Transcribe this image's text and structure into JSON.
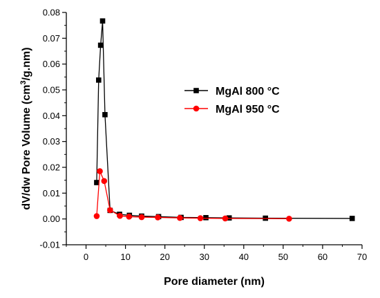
{
  "chart_data": {
    "type": "line",
    "xlabel": "Pore diameter (nm)",
    "ylabel": "dV/dw Pore Volume (cm",
    "ylabel_sup": "3",
    "ylabel_tail": "/g.nm)",
    "xlim": [
      -5,
      70
    ],
    "ylim": [
      -0.01,
      0.08
    ],
    "x_ticks": [
      0,
      10,
      20,
      30,
      40,
      50,
      60,
      70
    ],
    "y_ticks": [
      -0.01,
      0.0,
      0.01,
      0.02,
      0.03,
      0.04,
      0.05,
      0.06,
      0.07,
      0.08
    ],
    "x_tick_labels": [
      "0",
      "10",
      "20",
      "30",
      "40",
      "50",
      "60",
      "70"
    ],
    "y_tick_labels": [
      "-0.01",
      "0.00",
      "0.01",
      "0.02",
      "0.03",
      "0.04",
      "0.05",
      "0.06",
      "0.07",
      "0.08"
    ],
    "grid": false,
    "legend_position": "top-right",
    "series": [
      {
        "name": "MgAl 800 °C",
        "color": "#000000",
        "marker": "square",
        "x": [
          2.7,
          3.2,
          3.7,
          4.2,
          4.8,
          6.1,
          8.5,
          11.0,
          14.1,
          18.4,
          24.1,
          30.4,
          36.3,
          45.5,
          67.5
        ],
        "y": [
          0.0141,
          0.0538,
          0.0673,
          0.0767,
          0.0404,
          0.0033,
          0.0018,
          0.0014,
          0.0011,
          0.0009,
          0.0006,
          0.0005,
          0.0004,
          0.0003,
          0.0002
        ]
      },
      {
        "name": "MgAl 950 °C",
        "color": "#ff0000",
        "marker": "circle",
        "x": [
          2.7,
          3.5,
          4.6,
          6.1,
          8.6,
          10.9,
          14.1,
          18.2,
          23.8,
          29.0,
          35.3,
          51.5
        ],
        "y": [
          0.0011,
          0.0185,
          0.0147,
          0.0034,
          0.0012,
          0.0009,
          0.0007,
          0.0006,
          0.0004,
          0.0003,
          0.0002,
          0.0001
        ]
      }
    ]
  }
}
